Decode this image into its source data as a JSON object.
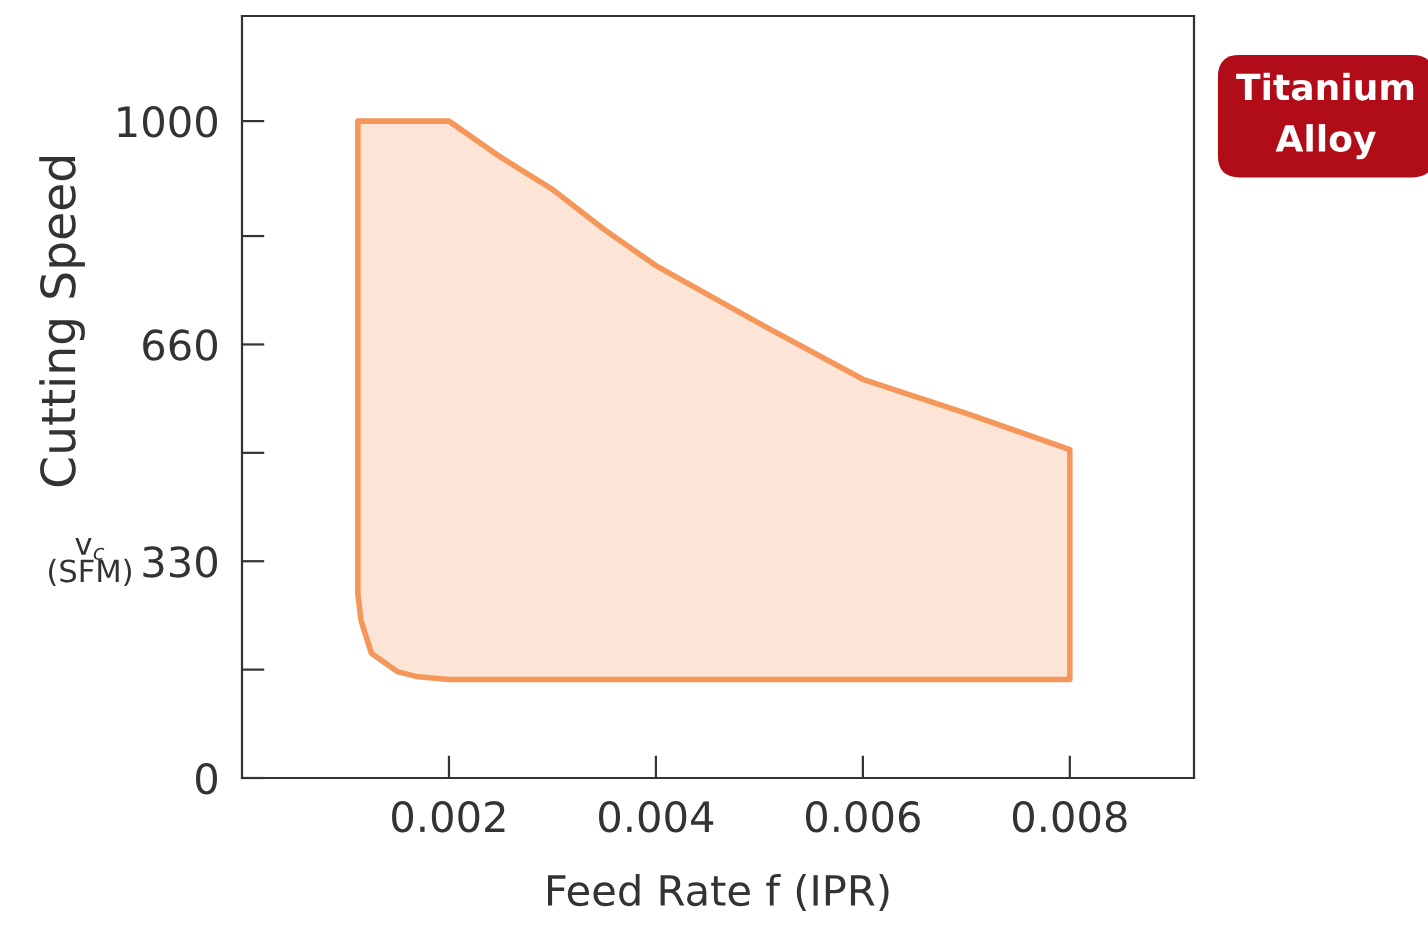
{
  "chart_data": {
    "type": "area",
    "xlabel": "Feed Rate f (IPR)",
    "ylabel": "Cutting Speed",
    "annotations": [
      "v$_{c}$\n(SFM)",
      "Titanium\nAlloy"
    ],
    "series": [
      {
        "color": "#f5975a",
        "x": [
          0.00112,
          0.002,
          0.0025,
          0.003,
          0.0035,
          0.004,
          0.005,
          0.006,
          0.007,
          0.008,
          0.008,
          0.002,
          0.0017,
          0.0015,
          0.00125,
          0.00115,
          0.00112,
          0.00112
        ],
        "values": [
          1000,
          1000,
          945,
          896,
          835,
          780,
          692,
          607,
          555,
          500,
          150,
          150,
          154,
          162,
          190,
          240,
          280,
          1000
        ]
      }
    ],
    "xlim": [
      0,
      0.0092
    ],
    "ylim": [
      0,
      1160
    ],
    "xticks": [
      0.002,
      0.004,
      0.006,
      0.008
    ],
    "yticks": [
      0,
      {
        "value": 165,
        "label": null
      },
      330,
      {
        "value": 495,
        "label": null
      },
      660,
      {
        "value": 825,
        "label": null
      },
      1000
    ],
    "grid": false,
    "legend": false
  }
}
